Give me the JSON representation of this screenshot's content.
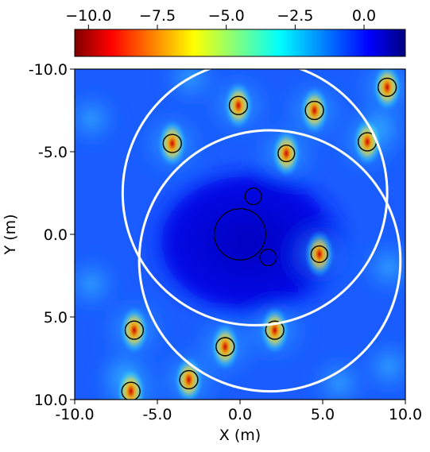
{
  "chart_data": {
    "type": "heatmap",
    "title": "",
    "xlabel": "X (m)",
    "ylabel": "Y (m)",
    "xlim": [
      -10,
      10
    ],
    "ylim": [
      -10,
      10
    ],
    "y_inverted": true,
    "x_ticks": [
      -10,
      -5,
      0,
      5,
      10
    ],
    "x_tick_labels": [
      "-10.0",
      "-5.0",
      "0.0",
      "5.0",
      "10.0"
    ],
    "y_ticks": [
      -10,
      -5,
      0,
      5,
      10
    ],
    "y_tick_labels": [
      "-10.0",
      "-5.0",
      "0.0",
      "5.0",
      "10.0"
    ],
    "colorbar": {
      "colormap": "jet",
      "range": [
        -10.5,
        1.5
      ],
      "ticks": [
        -10,
        -7.5,
        -5,
        -2.5,
        0
      ],
      "tick_labels": [
        "−10.0",
        "−7.5",
        "−5.0",
        "−2.5",
        "0.0"
      ],
      "placement": "top"
    },
    "background_level": -0.5,
    "scatterers": [
      {
        "x": -6.4,
        "y": 5.8,
        "r": 0.55
      },
      {
        "x": -3.1,
        "y": 8.8,
        "r": 0.55
      },
      {
        "x": -6.6,
        "y": 9.5,
        "r": 0.55
      },
      {
        "x": -0.9,
        "y": 6.8,
        "r": 0.55
      },
      {
        "x": 2.1,
        "y": 5.8,
        "r": 0.55
      },
      {
        "x": 4.8,
        "y": 1.2,
        "r": 0.5
      },
      {
        "x": 2.8,
        "y": -4.9,
        "r": 0.5
      },
      {
        "x": -4.1,
        "y": -5.5,
        "r": 0.55
      },
      {
        "x": -0.1,
        "y": -7.8,
        "r": 0.55
      },
      {
        "x": 4.5,
        "y": -7.5,
        "r": 0.55
      },
      {
        "x": 7.7,
        "y": -5.6,
        "r": 0.55
      },
      {
        "x": 8.9,
        "y": -8.9,
        "r": 0.55
      }
    ],
    "inner_circles": [
      {
        "x": 0.0,
        "y": 0.0,
        "r": 1.55
      },
      {
        "x": 0.8,
        "y": -2.3,
        "r": 0.5
      },
      {
        "x": 1.7,
        "y": 1.4,
        "r": 0.5
      }
    ],
    "white_circles": [
      {
        "x": 0.9,
        "y": -2.5,
        "r": 8.0
      },
      {
        "x": 1.8,
        "y": 1.6,
        "r": 7.9
      }
    ]
  }
}
